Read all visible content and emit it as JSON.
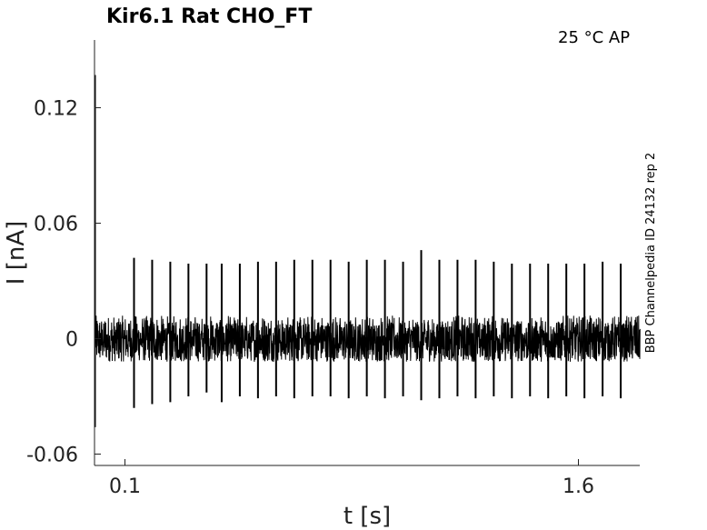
{
  "chart_data": {
    "type": "line",
    "title": "Kir6.1  Rat  CHO_FT",
    "annotation": "25 °C  AP",
    "side_label": "BBP Channelpedia ID 24132 rep 2",
    "xlabel": "t [s]",
    "ylabel": "I [nA]",
    "xlim": [
      0.1,
      1.6
    ],
    "ylim": [
      -0.06,
      0.12
    ],
    "x_ticks": [
      {
        "value": 0.1,
        "label": "0.1"
      },
      {
        "value": 1.6,
        "label": "1.6"
      }
    ],
    "y_ticks": [
      {
        "value": 0.12,
        "label": "0.12"
      },
      {
        "value": 0.06,
        "label": "0.06"
      },
      {
        "value": 0,
        "label": "0"
      },
      {
        "value": -0.06,
        "label": "-0.06"
      }
    ],
    "grid": false,
    "trace_color": "#000000",
    "noise_band": [
      -0.012,
      0.012
    ],
    "initial_transient": {
      "t": 0.0,
      "max": 0.137,
      "min": -0.046
    },
    "spikes": [
      {
        "t": 0.13,
        "peak": 0.042,
        "trough": -0.036
      },
      {
        "t": 0.19,
        "peak": 0.041,
        "trough": -0.034
      },
      {
        "t": 0.25,
        "peak": 0.04,
        "trough": -0.033
      },
      {
        "t": 0.31,
        "peak": 0.039,
        "trough": -0.03
      },
      {
        "t": 0.37,
        "peak": 0.039,
        "trough": -0.028
      },
      {
        "t": 0.42,
        "peak": 0.039,
        "trough": -0.033
      },
      {
        "t": 0.48,
        "peak": 0.039,
        "trough": -0.03
      },
      {
        "t": 0.54,
        "peak": 0.04,
        "trough": -0.031
      },
      {
        "t": 0.6,
        "peak": 0.04,
        "trough": -0.03
      },
      {
        "t": 0.66,
        "peak": 0.041,
        "trough": -0.031
      },
      {
        "t": 0.72,
        "peak": 0.041,
        "trough": -0.03
      },
      {
        "t": 0.78,
        "peak": 0.041,
        "trough": -0.03
      },
      {
        "t": 0.84,
        "peak": 0.04,
        "trough": -0.031
      },
      {
        "t": 0.9,
        "peak": 0.041,
        "trough": -0.03
      },
      {
        "t": 0.96,
        "peak": 0.041,
        "trough": -0.031
      },
      {
        "t": 1.02,
        "peak": 0.04,
        "trough": -0.03
      },
      {
        "t": 1.08,
        "peak": 0.046,
        "trough": -0.032
      },
      {
        "t": 1.14,
        "peak": 0.041,
        "trough": -0.031
      },
      {
        "t": 1.2,
        "peak": 0.041,
        "trough": -0.03
      },
      {
        "t": 1.26,
        "peak": 0.041,
        "trough": -0.031
      },
      {
        "t": 1.32,
        "peak": 0.04,
        "trough": -0.03
      },
      {
        "t": 1.38,
        "peak": 0.039,
        "trough": -0.031
      },
      {
        "t": 1.44,
        "peak": 0.039,
        "trough": -0.03
      },
      {
        "t": 1.5,
        "peak": 0.039,
        "trough": -0.031
      },
      {
        "t": 1.56,
        "peak": 0.039,
        "trough": -0.03
      },
      {
        "t": 1.62,
        "peak": 0.039,
        "trough": -0.031
      },
      {
        "t": 1.68,
        "peak": 0.04,
        "trough": -0.03
      },
      {
        "t": 1.74,
        "peak": 0.039,
        "trough": -0.031
      }
    ]
  }
}
